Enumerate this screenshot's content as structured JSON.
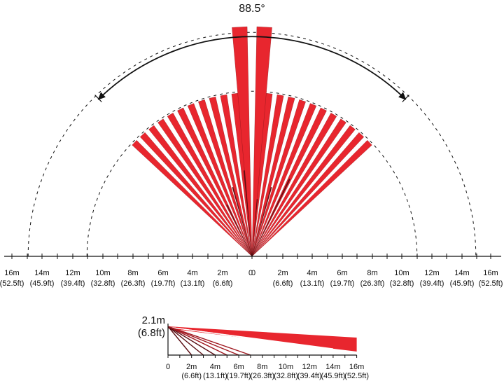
{
  "coverage_angle": "88.5°",
  "top_view": {
    "left_scale": [
      {
        "m": "16m",
        "ft": "(52.5ft)"
      },
      {
        "m": "14m",
        "ft": "(45.9ft)"
      },
      {
        "m": "12m",
        "ft": "(39.4ft)"
      },
      {
        "m": "10m",
        "ft": "(32.8ft)"
      },
      {
        "m": "8m",
        "ft": "(26.3ft)"
      },
      {
        "m": "6m",
        "ft": "(19.7ft)"
      },
      {
        "m": "4m",
        "ft": "(13.1ft)"
      },
      {
        "m": "2m",
        "ft": "(6.6ft)"
      },
      {
        "m": "0",
        "ft": ""
      }
    ],
    "right_scale": [
      {
        "m": "0",
        "ft": ""
      },
      {
        "m": "2m",
        "ft": "(6.6ft)"
      },
      {
        "m": "4m",
        "ft": "(13.1ft)"
      },
      {
        "m": "6m",
        "ft": "(19.7ft)"
      },
      {
        "m": "8m",
        "ft": "(26.3ft)"
      },
      {
        "m": "10m",
        "ft": "(32.8ft)"
      },
      {
        "m": "12m",
        "ft": "(39.4ft)"
      },
      {
        "m": "14m",
        "ft": "(45.9ft)"
      },
      {
        "m": "16m",
        "ft": "(52.5ft)"
      }
    ]
  },
  "side_view": {
    "height_m": "2.1m",
    "height_ft": "(6.8ft)",
    "scale": [
      {
        "m": "0",
        "ft": ""
      },
      {
        "m": "2m",
        "ft": "(6.6ft)"
      },
      {
        "m": "4m",
        "ft": "(13.1ft)"
      },
      {
        "m": "6m",
        "ft": "(19.7ft)"
      },
      {
        "m": "8m",
        "ft": "(26.3ft)"
      },
      {
        "m": "10m",
        "ft": "(32.8ft)"
      },
      {
        "m": "12m",
        "ft": "(39.4ft)"
      },
      {
        "m": "14m",
        "ft": "(45.9ft)"
      },
      {
        "m": "16m",
        "ft": "(52.5ft)"
      }
    ]
  },
  "colors": {
    "beam": "#e8262e",
    "dark_beam": "#5a0d12",
    "line": "#111111"
  }
}
